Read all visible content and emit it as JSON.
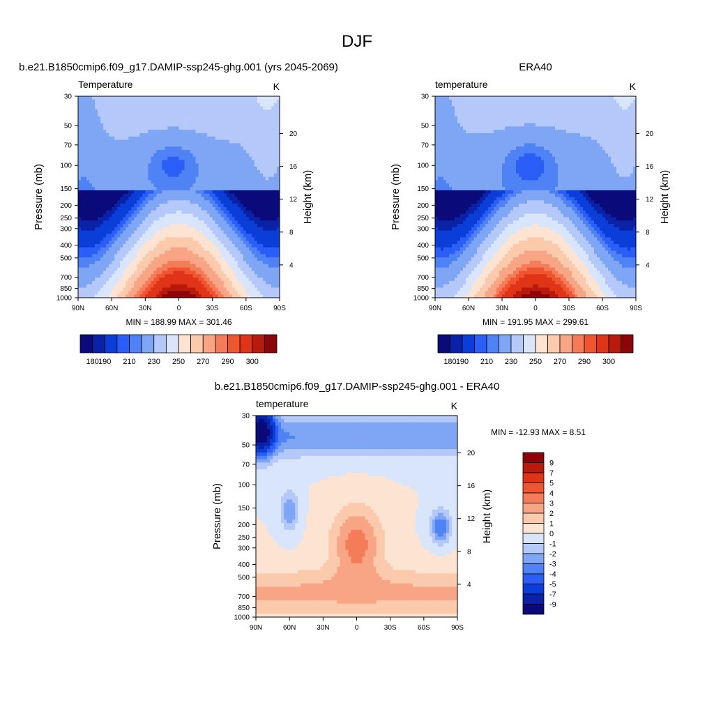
{
  "figure": {
    "title": "DJF"
  },
  "chart_data": [
    {
      "type": "heatmap",
      "id": "model",
      "title": "b.e21.B1850cmip6.f09_g17.DAMIP-ssp245-ghg.001 (yrs 2045-2069)",
      "subtitle_left": "Temperature",
      "subtitle_right": "K",
      "ylabel": "Pressure (mb)",
      "y2label": "Height (km)",
      "x_ticks": [
        "90N",
        "60N",
        "30N",
        "0",
        "30S",
        "60S",
        "90S"
      ],
      "y_ticks": [
        30,
        50,
        70,
        100,
        150,
        200,
        250,
        300,
        400,
        500,
        700,
        850,
        1000
      ],
      "y2_ticks": [
        20,
        16,
        12,
        8,
        4
      ],
      "minmax_text": "MIN = 188.99  MAX = 301.46",
      "min": 188.99,
      "max": 301.46,
      "colorbar": {
        "orientation": "horizontal",
        "labels": [
          "180",
          "190",
          "210",
          "230",
          "250",
          "270",
          "290",
          "300"
        ],
        "colors": [
          "#0a0a7a",
          "#0922a8",
          "#0b3ed8",
          "#2b5ef6",
          "#4f82f5",
          "#7fa6f5",
          "#b4c9f9",
          "#d8e5fb",
          "#fde4d2",
          "#fbc9ac",
          "#f8a585",
          "#f47c58",
          "#ef5530",
          "#e03418",
          "#b81a0b",
          "#8a0608"
        ]
      }
    },
    {
      "type": "heatmap",
      "id": "obs",
      "title": "ERA40",
      "subtitle_left": "temperature",
      "subtitle_right": "K",
      "ylabel": "Pressure (mb)",
      "y2label": "Height (km)",
      "x_ticks": [
        "90N",
        "60N",
        "30N",
        "0",
        "30S",
        "60S",
        "90S"
      ],
      "y_ticks": [
        30,
        50,
        70,
        100,
        150,
        200,
        250,
        300,
        400,
        500,
        700,
        850,
        1000
      ],
      "y2_ticks": [
        20,
        16,
        12,
        8,
        4
      ],
      "minmax_text": "MIN = 191.95  MAX = 299.61",
      "min": 191.95,
      "max": 299.61,
      "colorbar": {
        "orientation": "horizontal",
        "labels": [
          "180",
          "190",
          "210",
          "230",
          "250",
          "270",
          "290",
          "300"
        ],
        "colors": [
          "#0a0a7a",
          "#0922a8",
          "#0b3ed8",
          "#2b5ef6",
          "#4f82f5",
          "#7fa6f5",
          "#b4c9f9",
          "#d8e5fb",
          "#fde4d2",
          "#fbc9ac",
          "#f8a585",
          "#f47c58",
          "#ef5530",
          "#e03418",
          "#b81a0b",
          "#8a0608"
        ]
      }
    },
    {
      "type": "heatmap",
      "id": "diff",
      "title": "b.e21.B1850cmip6.f09_g17.DAMIP-ssp245-ghg.001 - ERA40",
      "subtitle_left": "temperature",
      "subtitle_right": "K",
      "ylabel": "Pressure (mb)",
      "y2label": "Height (km)",
      "x_ticks": [
        "90N",
        "60N",
        "30N",
        "0",
        "30S",
        "60S",
        "90S"
      ],
      "y_ticks": [
        30,
        50,
        70,
        100,
        150,
        200,
        250,
        300,
        400,
        500,
        700,
        850,
        1000
      ],
      "y2_ticks": [
        20,
        16,
        12,
        8,
        4
      ],
      "minmax_text": "MIN = -12.93  MAX =   8.51",
      "min": -12.93,
      "max": 8.51,
      "colorbar": {
        "orientation": "vertical",
        "labels": [
          "9",
          "7",
          "5",
          "4",
          "3",
          "2",
          "1",
          "0",
          "-1",
          "-2",
          "-3",
          "-4",
          "-5",
          "-7",
          "-9"
        ],
        "colors": [
          "#8a0608",
          "#b81a0b",
          "#e03418",
          "#ef5530",
          "#f47c58",
          "#f8a585",
          "#fbc9ac",
          "#fde4d2",
          "#d8e5fb",
          "#b4c9f9",
          "#7fa6f5",
          "#4f82f5",
          "#2b5ef6",
          "#0b3ed8",
          "#0922a8",
          "#0a0a7a"
        ]
      }
    }
  ]
}
